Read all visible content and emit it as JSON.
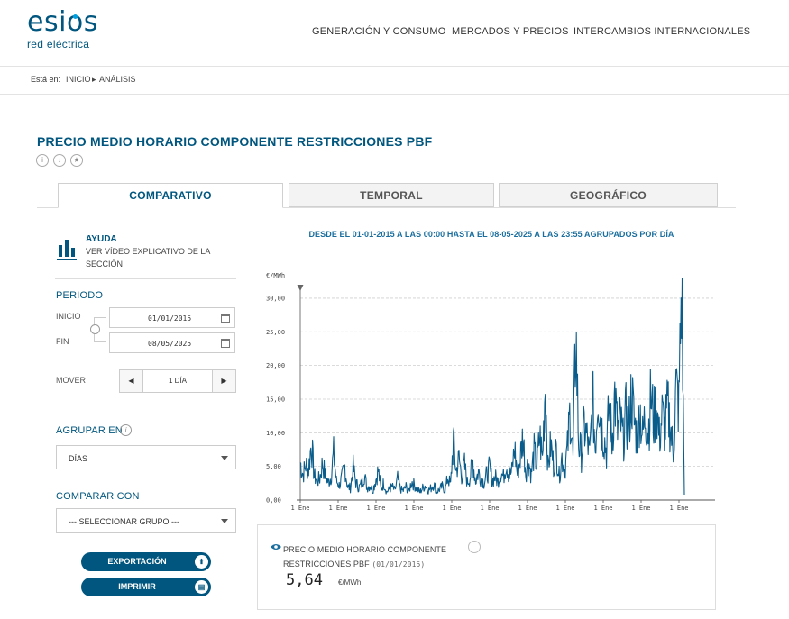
{
  "header": {
    "logo_main": "esios",
    "logo_sub": "red eléctrica",
    "nav": [
      "GENERACIÓN Y CONSUMO",
      "MERCADOS Y PRECIOS",
      "INTERCAMBIOS INTERNACIONALES"
    ]
  },
  "breadcrumb": {
    "prefix": "Está en:",
    "items": [
      "INICIO",
      "ANÁLISIS"
    ],
    "separator": "▸"
  },
  "page": {
    "title": "PRECIO MEDIO HORARIO COMPONENTE RESTRICCIONES PBF",
    "title_icons": [
      "info-icon",
      "download-icon",
      "star-icon"
    ]
  },
  "tabs": [
    {
      "label": "COMPARATIVO",
      "active": true
    },
    {
      "label": "TEMPORAL",
      "active": false
    },
    {
      "label": "GEOGRÁFICO",
      "active": false
    }
  ],
  "sidebar": {
    "help": {
      "title": "AYUDA",
      "text": "VER VÍDEO EXPLICATIVO DE LA SECCIÓN"
    },
    "periodo": {
      "label": "PERIODO",
      "inicio_label": "INICIO",
      "inicio_value": "01/01/2015",
      "fin_label": "FIN",
      "fin_value": "08/05/2025"
    },
    "mover": {
      "label": "MOVER",
      "value": "1 DÍA",
      "prev": "◀",
      "next": "▶"
    },
    "agrupar": {
      "label": "AGRUPAR EN",
      "info": "i",
      "value": "DÍAS"
    },
    "comparar": {
      "label": "COMPARAR CON",
      "value": "--- SELECCIONAR GRUPO ---"
    },
    "export_label": "EXPORTACIÓN",
    "print_label": "IMPRIMIR"
  },
  "chart_data": {
    "type": "line",
    "title": "DESDE EL 01-01-2015 A LAS 00:00 HASTA EL 08-05-2025 A LAS 23:55 AGRUPADOS POR DÍA",
    "ylabel": "€/MWh",
    "ylim": [
      0,
      32
    ],
    "y_ticks": [
      "0,00",
      "5,00",
      "10,00",
      "15,00",
      "20,00",
      "25,00",
      "30,00"
    ],
    "x_ticks": [
      "1 Ene",
      "1 Ene",
      "1 Ene",
      "1 Ene",
      "1 Ene",
      "1 Ene",
      "1 Ene",
      "1 Ene",
      "1 Ene",
      "1 Ene",
      "1 Ene"
    ],
    "grid": true,
    "color": "#0a5c8a",
    "series": [
      {
        "x_start": "2015-01-01",
        "x_end": "2025-05-08",
        "values": [
          5.6,
          3.8,
          5.2,
          4.6,
          8.6,
          3.6,
          2.8,
          3.2,
          5.6,
          3.6,
          2.6,
          3.4,
          6.9,
          2.8,
          2.2,
          3.3,
          5.0,
          2.0,
          1.8,
          4.8,
          2.6,
          1.8,
          2.4,
          3.8,
          1.8,
          2.2,
          1.4,
          2.8,
          4.4,
          1.6,
          2.6,
          1.2,
          1.6,
          2.0,
          1.4,
          3.2,
          1.6,
          1.4,
          2.0,
          1.2,
          2.8,
          2.2,
          1.6,
          1.2,
          1.8,
          2.2,
          1.4,
          1.8,
          2.4,
          1.2,
          1.6,
          2.0,
          1.4,
          3.4,
          2.2,
          8.8,
          4.2,
          6.2,
          3.6,
          5.2,
          2.6,
          3.4,
          5.8,
          2.8,
          4.2,
          3.2,
          2.6,
          3.8,
          4.8,
          2.8,
          3.4,
          2.8,
          4.2,
          3.4,
          5.6,
          3.6,
          4.2,
          7.8,
          3.8,
          6.2,
          9.6,
          4.2,
          5.8,
          3.8,
          7.2,
          5.0,
          9.6,
          6.2,
          17.4,
          4.8,
          8.2,
          5.2,
          7.4,
          3.6,
          6.4,
          4.6,
          7.6,
          13.6,
          6.2,
          25.2,
          8.4,
          6.8,
          10.8,
          9.2,
          6.4,
          15.2,
          7.8,
          17.2,
          11.2,
          9.6,
          7.2,
          14.2,
          8.6,
          15.6,
          10.2,
          11.8,
          8.8,
          12.6,
          10.4,
          16.2,
          11.4,
          9.6,
          13.8,
          9.4,
          12.8,
          10.2,
          15.4,
          11.8,
          14.2,
          9.2,
          12.6,
          10.4,
          13.6,
          11.0,
          6.8,
          16.6,
          13.8,
          32.2,
          0.8
        ]
      }
    ]
  },
  "info_box": {
    "name_line1": "PRECIO MEDIO HORARIO COMPONENTE",
    "name_line2": "RESTRICCIONES PBF",
    "date": "(01/01/2015)",
    "value": "5,64",
    "unit": "€/MWh"
  }
}
